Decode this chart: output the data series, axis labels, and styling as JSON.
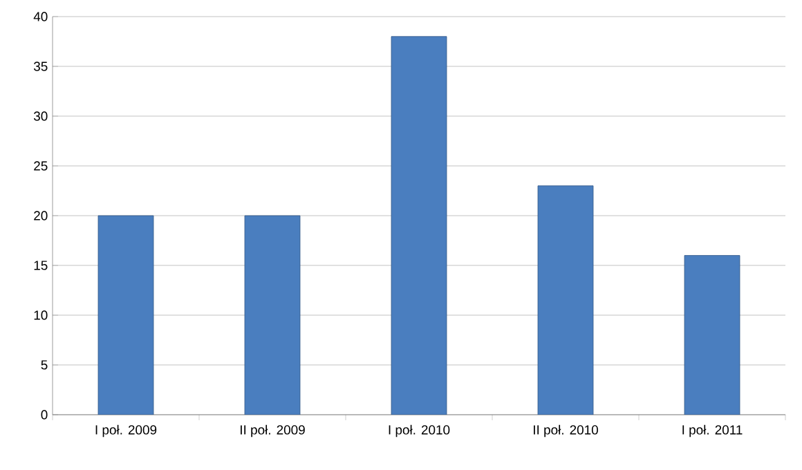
{
  "chart_data": {
    "type": "bar",
    "categories": [
      "I poł. 2009",
      "II poł. 2009",
      "I poł. 2010",
      "II poł. 2010",
      "I poł. 2011"
    ],
    "values": [
      20,
      20,
      38,
      23,
      16
    ],
    "color": "#4a7ebf",
    "ylim": [
      0,
      40
    ],
    "yticks": [
      0,
      5,
      10,
      15,
      20,
      25,
      30,
      35,
      40
    ],
    "grid": "y"
  }
}
